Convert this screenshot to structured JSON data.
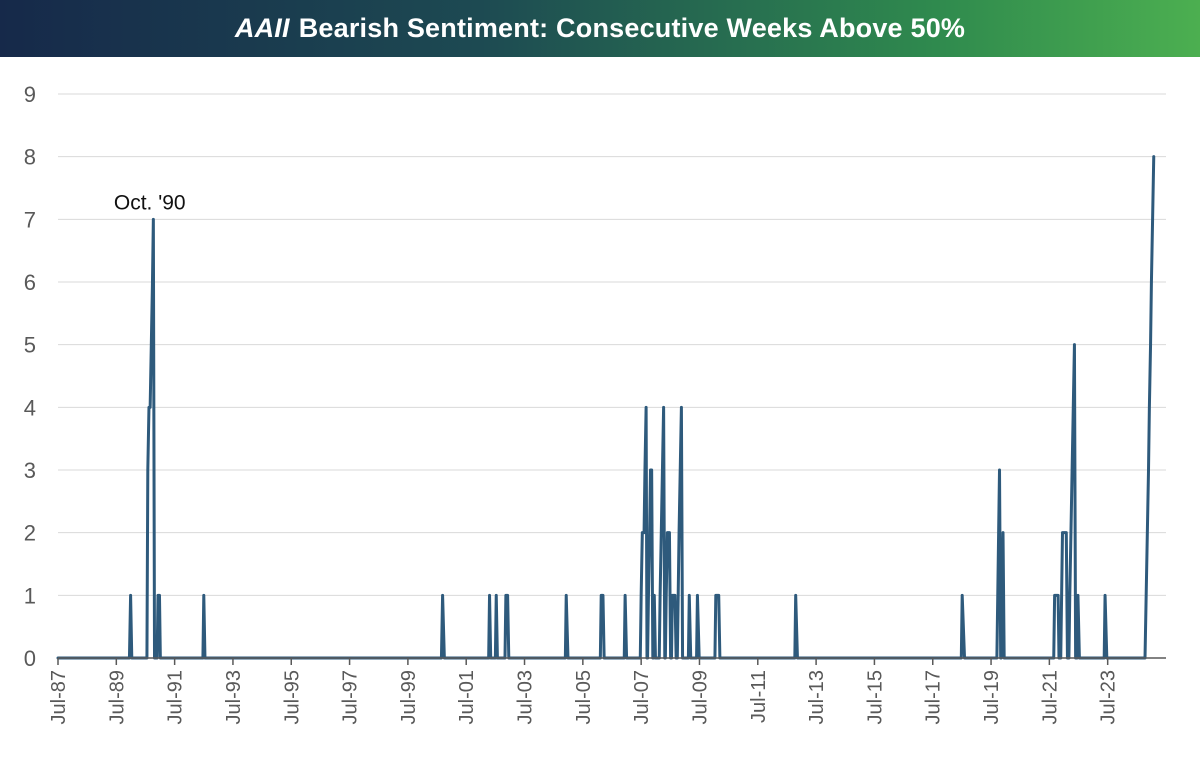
{
  "header": {
    "brand": "AAII",
    "title": "Bearish Sentiment: Consecutive Weeks Above 50%"
  },
  "colors": {
    "line": "#2e5a7c",
    "grid": "#d9d9d9",
    "axis": "#595959",
    "text": "#595959"
  },
  "chart_data": {
    "type": "line",
    "title": "AAII Bearish Sentiment: Consecutive Weeks Above 50%",
    "xlabel": "",
    "ylabel": "",
    "ylim": [
      0,
      9
    ],
    "yticks": [
      0,
      1,
      2,
      3,
      4,
      5,
      6,
      7,
      8,
      9
    ],
    "xlim": [
      1987.5,
      2025.5
    ],
    "xtick_labels": [
      "Jul-87",
      "Jul-89",
      "Jul-91",
      "Jul-93",
      "Jul-95",
      "Jul-97",
      "Jul-99",
      "Jul-01",
      "Jul-03",
      "Jul-05",
      "Jul-07",
      "Jul-09",
      "Jul-11",
      "Jul-13",
      "Jul-15",
      "Jul-17",
      "Jul-19",
      "Jul-21",
      "Jul-23"
    ],
    "xtick_years": [
      1987.5,
      1989.5,
      1991.5,
      1993.5,
      1995.5,
      1997.5,
      1999.5,
      2001.5,
      2003.5,
      2005.5,
      2007.5,
      2009.5,
      2011.5,
      2013.5,
      2015.5,
      2017.5,
      2019.5,
      2021.5,
      2023.5
    ],
    "annotations": [
      {
        "text": "Oct. '90",
        "x": 1990.75,
        "y": 7
      }
    ],
    "series": [
      {
        "name": "Consecutive Weeks Above 50%",
        "points": [
          [
            1987.5,
            0
          ],
          [
            1989.95,
            0
          ],
          [
            1989.99,
            1
          ],
          [
            1990.03,
            0
          ],
          [
            1990.55,
            0
          ],
          [
            1990.58,
            3
          ],
          [
            1990.62,
            4
          ],
          [
            1990.66,
            4
          ],
          [
            1990.7,
            5
          ],
          [
            1990.74,
            6
          ],
          [
            1990.77,
            7
          ],
          [
            1990.81,
            0
          ],
          [
            1990.9,
            0
          ],
          [
            1990.93,
            1
          ],
          [
            1990.98,
            1
          ],
          [
            1991.01,
            0
          ],
          [
            1992.47,
            0
          ],
          [
            1992.5,
            1
          ],
          [
            1992.54,
            0
          ],
          [
            2000.65,
            0
          ],
          [
            2000.69,
            1
          ],
          [
            2000.75,
            0
          ],
          [
            2002.27,
            0
          ],
          [
            2002.3,
            1
          ],
          [
            2002.34,
            0
          ],
          [
            2002.5,
            0
          ],
          [
            2002.53,
            1
          ],
          [
            2002.57,
            0
          ],
          [
            2002.83,
            0
          ],
          [
            2002.86,
            1
          ],
          [
            2002.92,
            1
          ],
          [
            2002.96,
            0
          ],
          [
            2004.9,
            0
          ],
          [
            2004.93,
            1
          ],
          [
            2004.99,
            0
          ],
          [
            2006.1,
            0
          ],
          [
            2006.13,
            1
          ],
          [
            2006.19,
            1
          ],
          [
            2006.23,
            0
          ],
          [
            2006.92,
            0
          ],
          [
            2006.95,
            1
          ],
          [
            2007.0,
            0
          ],
          [
            2007.47,
            0
          ],
          [
            2007.5,
            1
          ],
          [
            2007.54,
            2
          ],
          [
            2007.6,
            2
          ],
          [
            2007.63,
            3
          ],
          [
            2007.67,
            4
          ],
          [
            2007.7,
            0
          ],
          [
            2007.72,
            0
          ],
          [
            2007.75,
            1
          ],
          [
            2007.79,
            2
          ],
          [
            2007.82,
            3
          ],
          [
            2007.86,
            3
          ],
          [
            2007.9,
            0
          ],
          [
            2007.92,
            0
          ],
          [
            2007.95,
            1
          ],
          [
            2007.99,
            0
          ],
          [
            2008.12,
            0
          ],
          [
            2008.15,
            1
          ],
          [
            2008.19,
            2
          ],
          [
            2008.23,
            3
          ],
          [
            2008.27,
            4
          ],
          [
            2008.31,
            0
          ],
          [
            2008.33,
            0
          ],
          [
            2008.36,
            1
          ],
          [
            2008.4,
            2
          ],
          [
            2008.47,
            2
          ],
          [
            2008.51,
            0
          ],
          [
            2008.54,
            0
          ],
          [
            2008.57,
            1
          ],
          [
            2008.66,
            1
          ],
          [
            2008.7,
            0
          ],
          [
            2008.74,
            0
          ],
          [
            2008.77,
            1
          ],
          [
            2008.8,
            2
          ],
          [
            2008.84,
            3
          ],
          [
            2008.88,
            4
          ],
          [
            2008.92,
            0
          ],
          [
            2009.12,
            0
          ],
          [
            2009.15,
            1
          ],
          [
            2009.2,
            0
          ],
          [
            2009.4,
            0
          ],
          [
            2009.43,
            1
          ],
          [
            2009.49,
            0
          ],
          [
            2010.03,
            0
          ],
          [
            2010.06,
            1
          ],
          [
            2010.16,
            1
          ],
          [
            2010.2,
            0
          ],
          [
            2012.77,
            0
          ],
          [
            2012.8,
            1
          ],
          [
            2012.86,
            0
          ],
          [
            2018.48,
            0
          ],
          [
            2018.51,
            1
          ],
          [
            2018.59,
            0
          ],
          [
            2019.7,
            0
          ],
          [
            2019.73,
            1
          ],
          [
            2019.76,
            2
          ],
          [
            2019.79,
            3
          ],
          [
            2019.83,
            0
          ],
          [
            2019.85,
            0
          ],
          [
            2019.88,
            1
          ],
          [
            2019.91,
            2
          ],
          [
            2019.95,
            0
          ],
          [
            2021.65,
            0
          ],
          [
            2021.68,
            1
          ],
          [
            2021.8,
            1
          ],
          [
            2021.83,
            0
          ],
          [
            2021.89,
            0
          ],
          [
            2021.92,
            1
          ],
          [
            2021.95,
            2
          ],
          [
            2022.08,
            2
          ],
          [
            2022.12,
            0
          ],
          [
            2022.17,
            0
          ],
          [
            2022.2,
            1
          ],
          [
            2022.24,
            2
          ],
          [
            2022.28,
            3
          ],
          [
            2022.32,
            4
          ],
          [
            2022.36,
            5
          ],
          [
            2022.4,
            0
          ],
          [
            2022.45,
            0
          ],
          [
            2022.48,
            1
          ],
          [
            2022.53,
            0
          ],
          [
            2023.38,
            0
          ],
          [
            2023.41,
            1
          ],
          [
            2023.47,
            0
          ],
          [
            2024.78,
            0
          ],
          [
            2024.82,
            1
          ],
          [
            2024.86,
            2
          ],
          [
            2024.9,
            3
          ],
          [
            2024.93,
            4
          ],
          [
            2024.97,
            5
          ],
          [
            2025.0,
            6
          ],
          [
            2025.04,
            7
          ],
          [
            2025.08,
            8
          ]
        ]
      }
    ]
  }
}
